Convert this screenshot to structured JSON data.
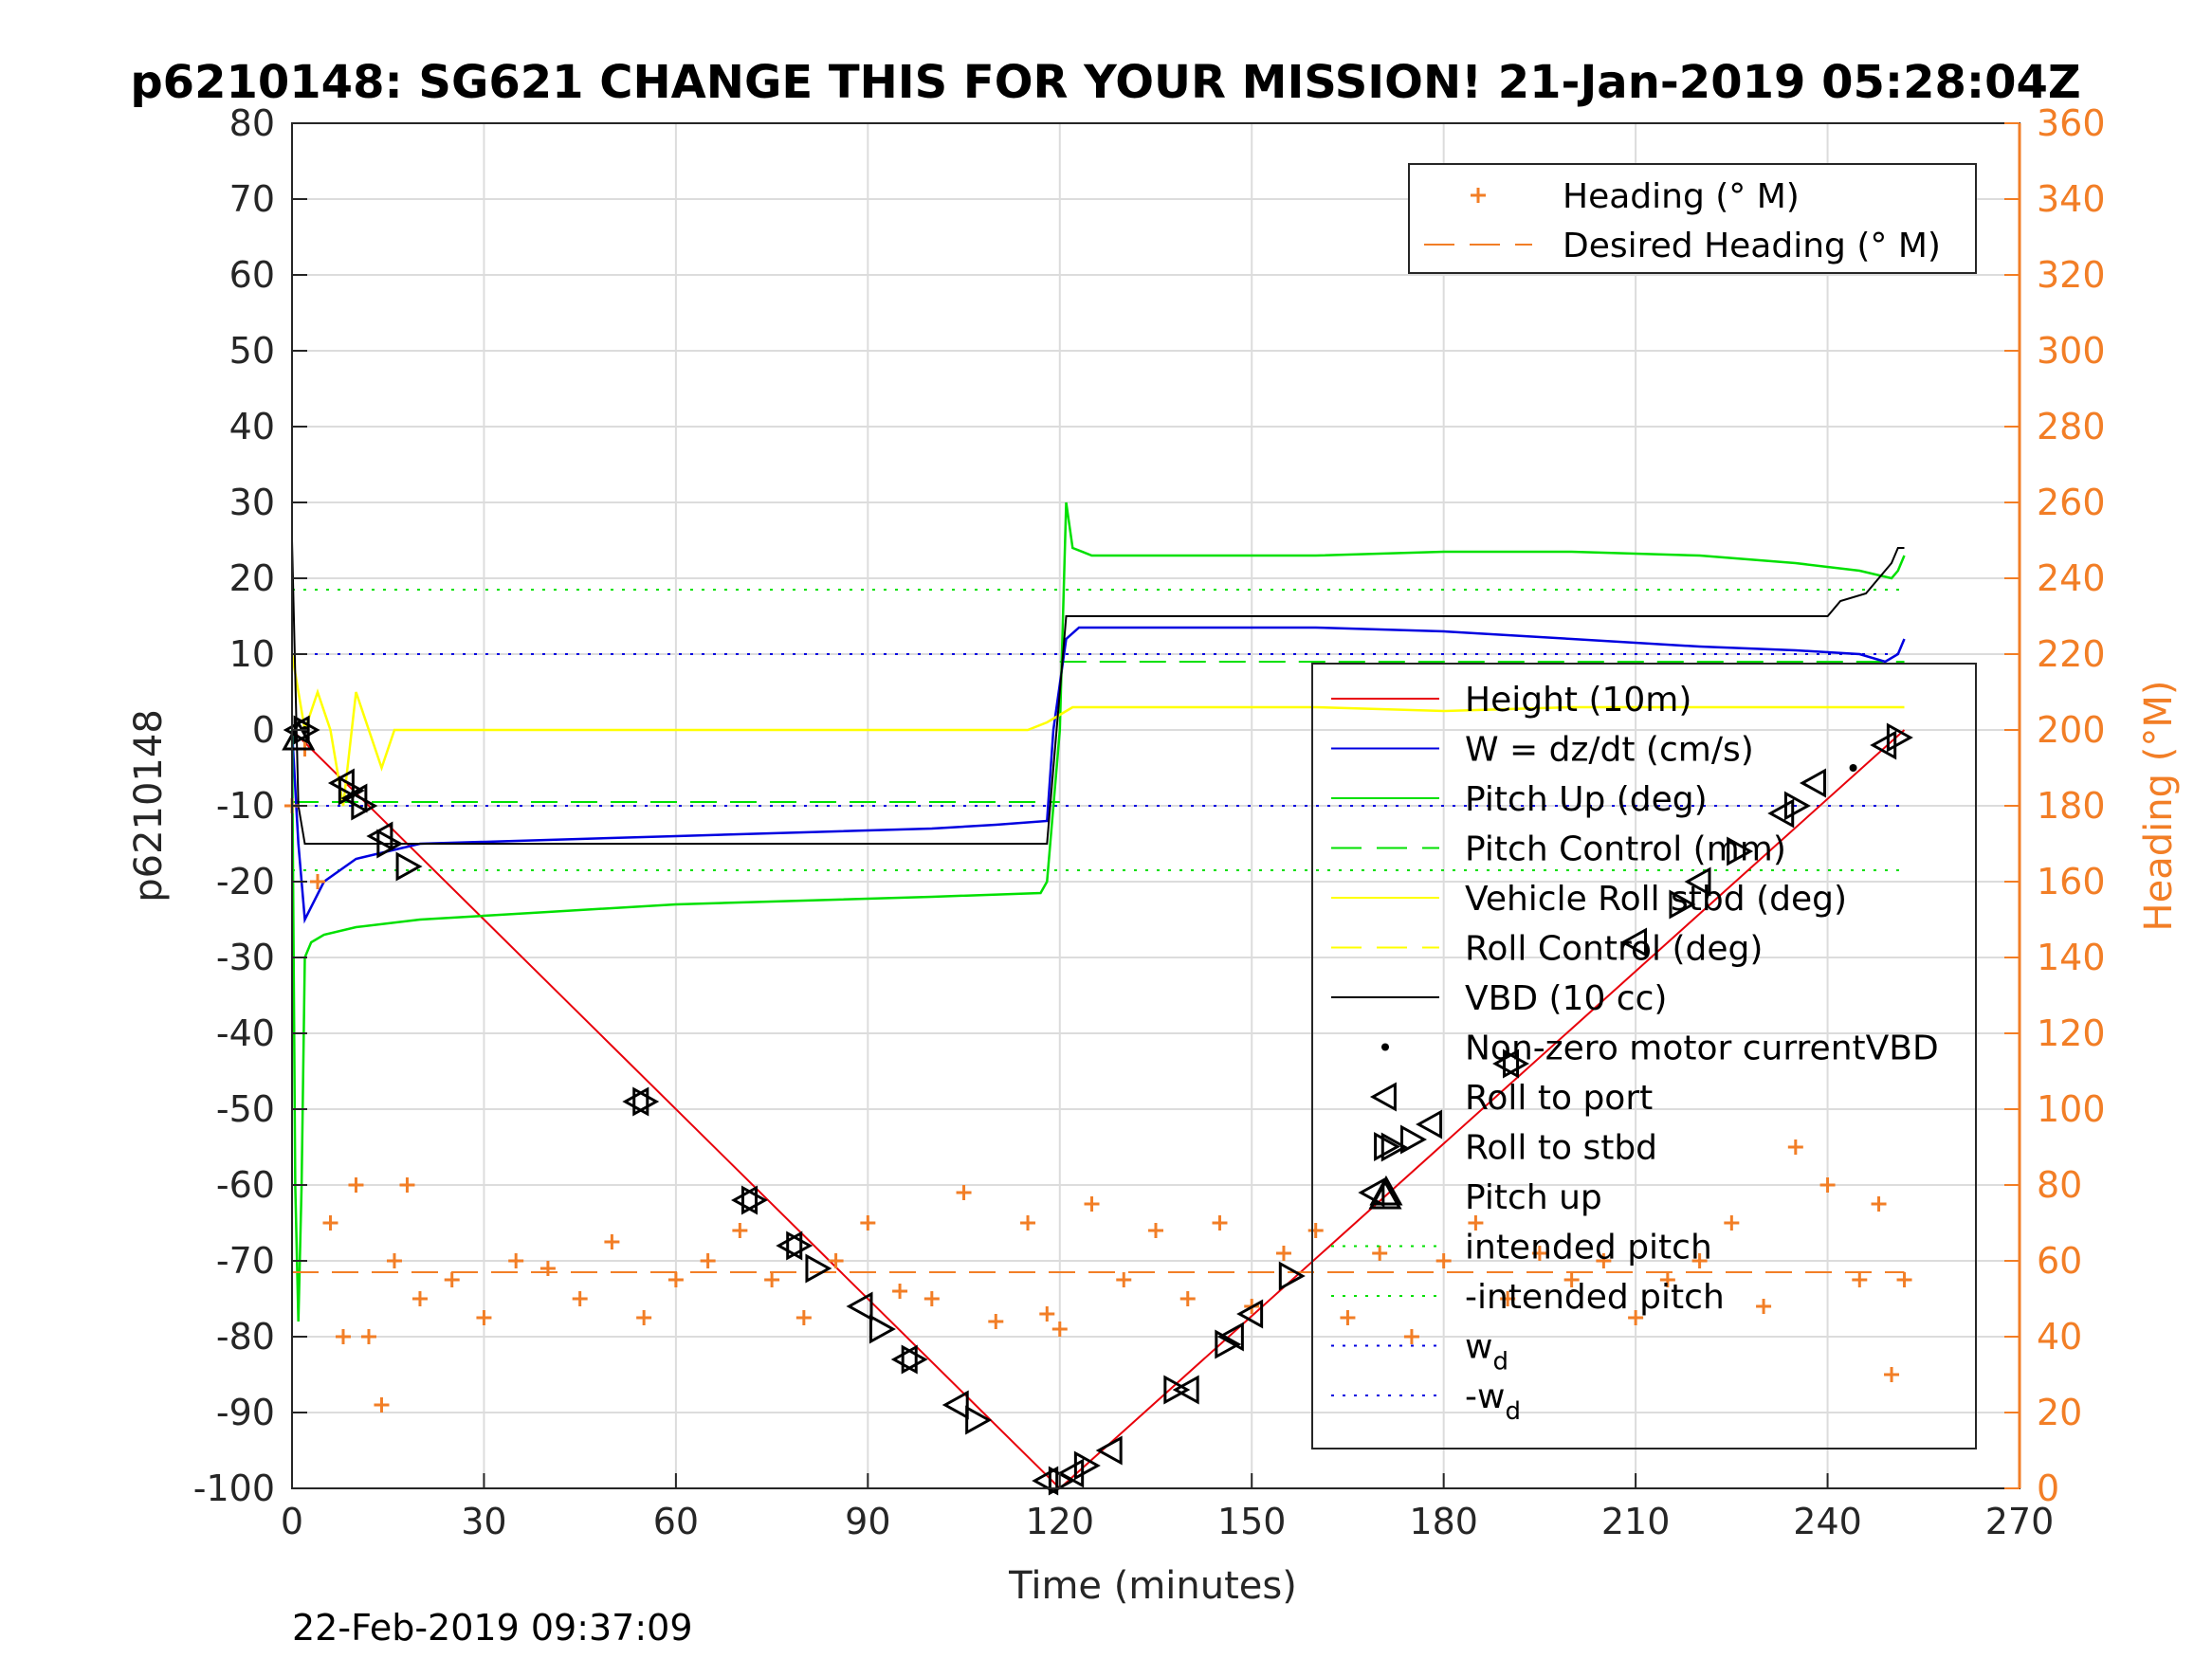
{
  "chart_data": {
    "type": "line",
    "title": "p6210148: SG621 CHANGE THIS FOR YOUR MISSION! 21-Jan-2019 05:28:04Z",
    "xlabel": "Time (minutes)",
    "ylabel_left": "p6210148",
    "ylabel_right": "Heading (°M)",
    "xlim": [
      0,
      270
    ],
    "ylim_left": [
      -100,
      80
    ],
    "ylim_right": [
      0,
      360
    ],
    "xticks": [
      "0",
      "30",
      "60",
      "90",
      "120",
      "150",
      "180",
      "210",
      "240",
      "270"
    ],
    "yticks_left": [
      "80",
      "70",
      "60",
      "50",
      "40",
      "30",
      "20",
      "10",
      "0",
      "-10",
      "-20",
      "-30",
      "-40",
      "-50",
      "-60",
      "-70",
      "-80",
      "-90",
      "-100"
    ],
    "yticks_right": [
      "360",
      "340",
      "320",
      "300",
      "280",
      "260",
      "240",
      "220",
      "200",
      "180",
      "160",
      "140",
      "120",
      "100",
      "80",
      "60",
      "40",
      "20",
      "0"
    ],
    "grid": true,
    "footer_timestamp": "22-Feb-2019 09:37:09",
    "colors": {
      "heading": "#f27e26",
      "height": "#e8000b",
      "w": "#0000e0",
      "pitch": "#00e000",
      "roll": "#ffff00",
      "vbd": "#000000"
    },
    "legend_top": [
      {
        "label": "Heading (° M)",
        "style": "plus",
        "color": "#f27e26"
      },
      {
        "label": "Desired Heading (° M)",
        "style": "dashed",
        "color": "#f27e26"
      }
    ],
    "legend_main": [
      {
        "label": "Height (10m)",
        "style": "line",
        "color": "#e8000b"
      },
      {
        "label": "W = dz/dt (cm/s)",
        "style": "line",
        "color": "#0000e0"
      },
      {
        "label": "Pitch Up (deg)",
        "style": "line",
        "color": "#00e000"
      },
      {
        "label": "Pitch Control (mm)",
        "style": "dashed",
        "color": "#00e000"
      },
      {
        "label": "Vehicle Roll stbd (deg)",
        "style": "line",
        "color": "#ffff00"
      },
      {
        "label": "Roll Control (deg)",
        "style": "dashed",
        "color": "#ffff00"
      },
      {
        "label": "VBD (10 cc)",
        "style": "line",
        "color": "#000000"
      },
      {
        "label": "Non-zero motor currentVBD",
        "style": "dot",
        "color": "#000000"
      },
      {
        "label": "Roll to port",
        "style": "tri-left",
        "color": "#000000"
      },
      {
        "label": "Roll to stbd",
        "style": "tri-right",
        "color": "#000000"
      },
      {
        "label": "Pitch up",
        "style": "tri-up",
        "color": "#000000"
      },
      {
        "label": "intended pitch",
        "style": "dotted",
        "color": "#00e000"
      },
      {
        "label": "-intended pitch",
        "style": "dotted",
        "color": "#00e000"
      },
      {
        "label": "w",
        "sub": "d",
        "style": "dotted",
        "color": "#0000e0"
      },
      {
        "label": "-w",
        "sub": "d",
        "style": "dotted",
        "color": "#0000e0"
      }
    ],
    "series": [
      {
        "name": "Height (10m)",
        "axis": "left",
        "x": [
          0,
          120,
          252
        ],
        "y": [
          0,
          -100,
          0
        ]
      },
      {
        "name": "W = dz/dt (cm/s)",
        "axis": "left",
        "x": [
          0,
          1,
          2,
          5,
          10,
          20,
          40,
          60,
          80,
          100,
          110,
          118,
          119,
          121,
          123,
          140,
          160,
          180,
          200,
          220,
          235,
          245,
          249,
          251,
          252
        ],
        "y": [
          0,
          -15,
          -25,
          -20,
          -17,
          -15,
          -14.5,
          -14,
          -13.5,
          -13,
          -12.5,
          -12,
          0,
          12,
          13.5,
          13.5,
          13.5,
          13,
          12,
          11,
          10.5,
          10,
          9,
          10,
          12
        ]
      },
      {
        "name": "Pitch Up (deg)",
        "axis": "left",
        "x": [
          0,
          0.5,
          1,
          1.5,
          2,
          3,
          5,
          10,
          20,
          40,
          60,
          80,
          100,
          117,
          118,
          120,
          121,
          122,
          125,
          140,
          160,
          180,
          200,
          220,
          235,
          245,
          250,
          251,
          252
        ],
        "y": [
          0,
          -60,
          -78,
          -60,
          -30,
          -28,
          -27,
          -26,
          -25,
          -24,
          -23,
          -22.5,
          -22,
          -21.5,
          -20,
          0,
          30,
          24,
          23,
          23,
          23,
          23.5,
          23.5,
          23,
          22,
          21,
          20,
          21,
          23
        ]
      },
      {
        "name": "Vehicle Roll stbd (deg)",
        "axis": "left",
        "x": [
          0,
          2,
          4,
          6,
          8,
          10,
          12,
          14,
          16,
          18,
          20,
          40,
          60,
          80,
          100,
          115,
          118,
          120,
          122,
          125,
          140,
          160,
          180,
          200,
          220,
          240,
          252
        ],
        "y": [
          10,
          0,
          5,
          0,
          -10,
          5,
          0,
          -5,
          0,
          0,
          0,
          0,
          0,
          0,
          0,
          0,
          1,
          2,
          3,
          3,
          3,
          3,
          2.5,
          3,
          3,
          3,
          3
        ]
      },
      {
        "name": "VBD (10 cc)",
        "axis": "left",
        "x": [
          0,
          1,
          2,
          118,
          119,
          120,
          121,
          240,
          242,
          246,
          248,
          250,
          251,
          252
        ],
        "y": [
          25,
          -10,
          -15,
          -15,
          -5,
          5,
          15,
          15,
          17,
          18,
          20,
          22,
          24,
          24
        ]
      },
      {
        "name": "Heading (° M)",
        "axis": "right",
        "x": [
          0,
          2,
          4,
          6,
          8,
          10,
          12,
          14,
          16,
          18,
          20,
          25,
          30,
          35,
          40,
          45,
          50,
          55,
          60,
          65,
          70,
          75,
          80,
          85,
          90,
          95,
          100,
          105,
          110,
          115,
          118,
          120,
          125,
          130,
          135,
          140,
          145,
          150,
          155,
          160,
          165,
          170,
          175,
          180,
          185,
          190,
          195,
          200,
          205,
          210,
          215,
          220,
          225,
          230,
          235,
          240,
          245,
          248,
          250,
          252
        ],
        "y": [
          180,
          195,
          160,
          70,
          40,
          80,
          40,
          22,
          60,
          80,
          50,
          55,
          45,
          60,
          58,
          50,
          65,
          45,
          55,
          60,
          68,
          55,
          45,
          60,
          70,
          52,
          50,
          78,
          44,
          70,
          46,
          42,
          75,
          55,
          68,
          50,
          70,
          48,
          62,
          68,
          45,
          62,
          40,
          60,
          70,
          50,
          62,
          55,
          60,
          45,
          55,
          60,
          70,
          48,
          90,
          80,
          55,
          75,
          30,
          55
        ]
      },
      {
        "name": "Desired Heading (° M)",
        "axis": "right",
        "x": [
          0,
          252
        ],
        "y": [
          57,
          57
        ]
      }
    ],
    "reference_lines": [
      {
        "name": "intended pitch",
        "axis": "left",
        "y": 18.5
      },
      {
        "name": "-intended pitch",
        "axis": "left",
        "y": -18.5
      },
      {
        "name": "w_d",
        "axis": "left",
        "y": 10
      },
      {
        "name": "-w_d",
        "axis": "left",
        "y": -10
      },
      {
        "name": "Pitch Control (mm) dive",
        "axis": "left",
        "y": -9.5,
        "x": [
          0,
          120
        ]
      },
      {
        "name": "Pitch Control (mm) climb",
        "axis": "left",
        "y": 9,
        "x": [
          120,
          252
        ]
      }
    ],
    "markers": {
      "roll_to_port": [
        [
          1,
          0
        ],
        [
          8,
          -7
        ],
        [
          10,
          -9
        ],
        [
          14,
          -14
        ],
        [
          54,
          -49
        ],
        [
          71,
          -62
        ],
        [
          78,
          -68
        ],
        [
          89,
          -76
        ],
        [
          96,
          -83
        ],
        [
          104,
          -89
        ],
        [
          118,
          -99
        ],
        [
          122,
          -98
        ],
        [
          128,
          -95
        ],
        [
          140,
          -87
        ],
        [
          147,
          -80
        ],
        [
          150,
          -77
        ],
        [
          169,
          -61
        ],
        [
          178,
          -52
        ],
        [
          190,
          -44
        ],
        [
          210,
          -28
        ],
        [
          220,
          -20
        ],
        [
          233,
          -11
        ],
        [
          238,
          -7
        ],
        [
          249,
          -2
        ]
      ],
      "roll_to_stbd": [
        [
          2,
          0
        ],
        [
          9,
          -8
        ],
        [
          11,
          -10
        ],
        [
          15,
          -15
        ],
        [
          18,
          -18
        ],
        [
          55,
          -49
        ],
        [
          72,
          -62
        ],
        [
          79,
          -68
        ],
        [
          82,
          -71
        ],
        [
          92,
          -79
        ],
        [
          97,
          -83
        ],
        [
          107,
          -91
        ],
        [
          120,
          -99
        ],
        [
          124,
          -97
        ],
        [
          138,
          -87
        ],
        [
          146,
          -81
        ],
        [
          156,
          -72
        ],
        [
          172,
          -55
        ],
        [
          175,
          -54
        ],
        [
          191,
          -44
        ],
        [
          217,
          -23
        ],
        [
          226,
          -16
        ],
        [
          235,
          -10
        ],
        [
          251,
          -1
        ]
      ],
      "pitch_up": [
        [
          1,
          -1
        ],
        [
          171,
          -61
        ]
      ],
      "motor_vbd": [
        [
          2,
          0
        ],
        [
          244,
          -5
        ]
      ]
    }
  }
}
